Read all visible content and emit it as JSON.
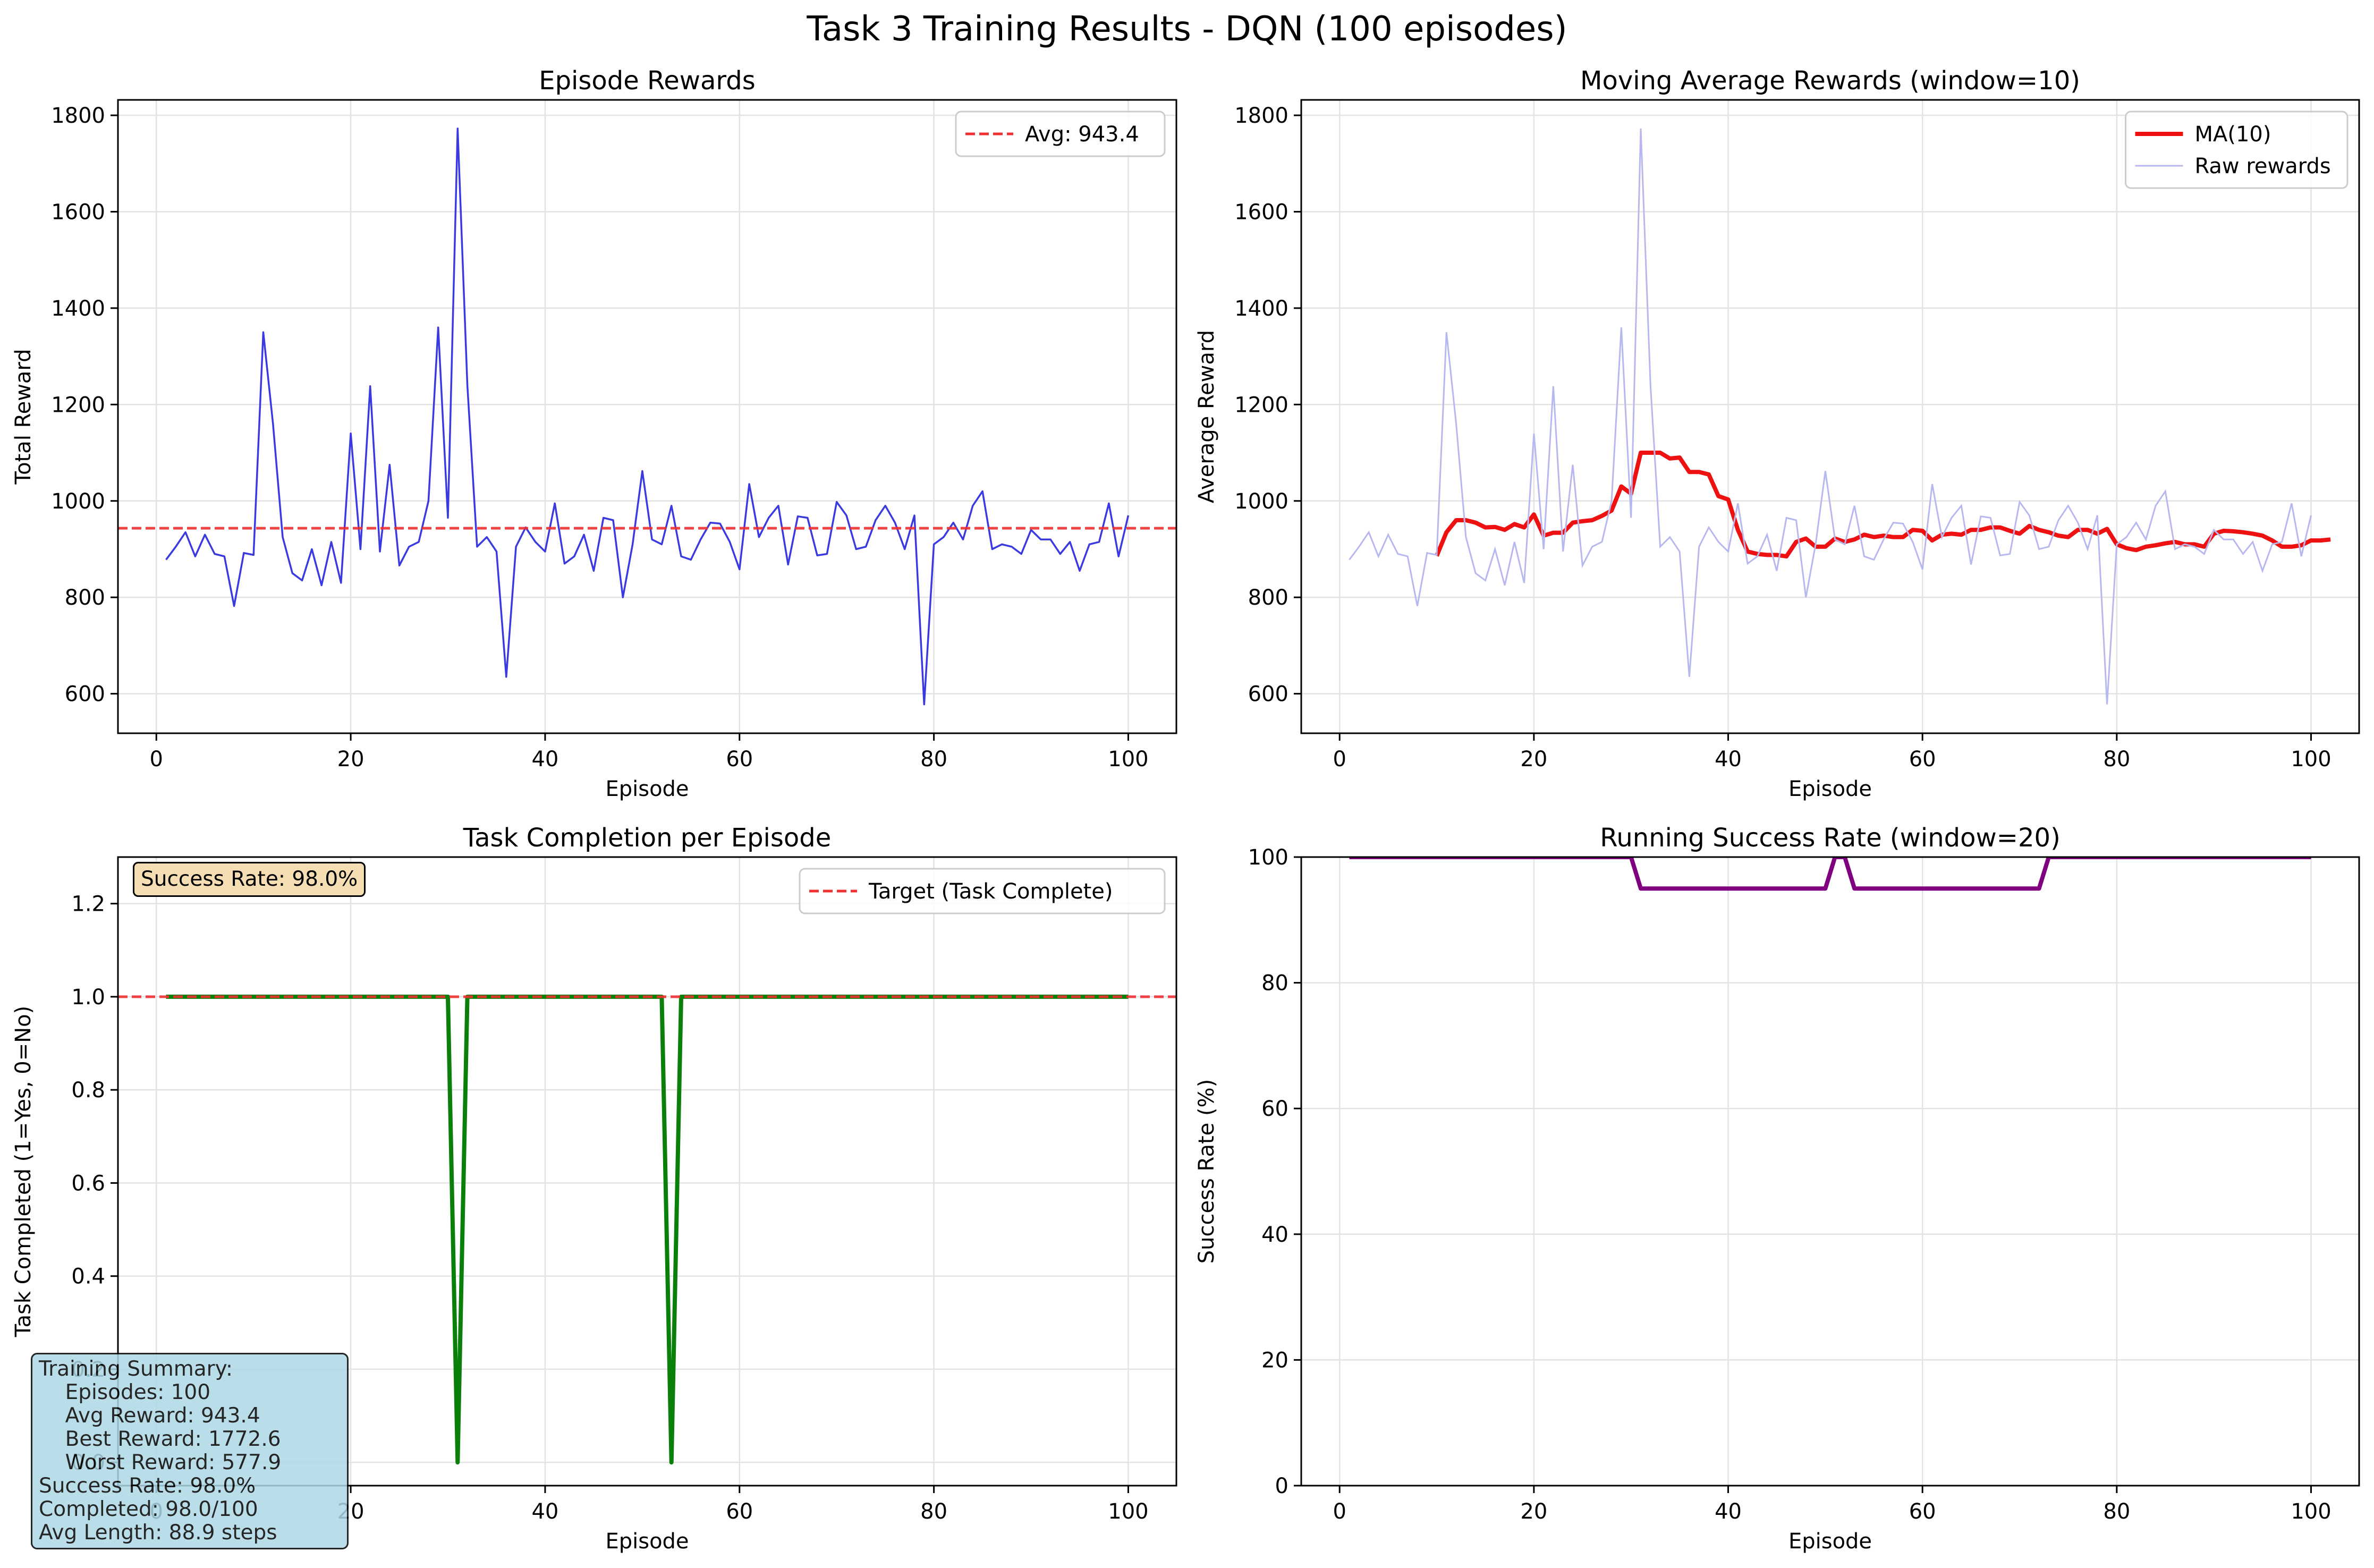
{
  "figure": {
    "title": "Task 3 Training Results - DQN (100 episodes)"
  },
  "colors": {
    "raw": "#3a3ae0",
    "avg": "#f03030",
    "ma": "#ee1111",
    "raw_faint": "#b8b8f0",
    "task": "#0a7f0a",
    "target": "#f03030",
    "success": "#800080",
    "grid": "#e3e3e3"
  },
  "chart_data": [
    {
      "id": "episode-rewards",
      "type": "line",
      "title": "Episode Rewards",
      "xlabel": "Episode",
      "ylabel": "Total Reward",
      "xlim": [
        -3.95,
        104.95
      ],
      "ylim": [
        518,
        1832
      ],
      "xticks": [
        0,
        20,
        40,
        60,
        80,
        100
      ],
      "yticks": [
        600,
        800,
        1000,
        1200,
        1400,
        1600,
        1800
      ],
      "grid": true,
      "legend_position": "upper-right",
      "series": [
        {
          "name": "",
          "x_start": 1,
          "values": [
            878,
            905,
            935,
            885,
            930,
            890,
            885,
            782,
            892,
            888,
            1350,
            1160,
            925,
            850,
            835,
            900,
            825,
            915,
            830,
            1140,
            900,
            1238,
            895,
            1075,
            866,
            905,
            915,
            1000,
            1360,
            965,
            1772.6,
            1240,
            905,
            925,
            895,
            635,
            905,
            945,
            915,
            895,
            995,
            870,
            885,
            930,
            855,
            965,
            960,
            800,
            910,
            1062,
            920,
            910,
            990,
            885,
            878,
            920,
            955,
            953,
            915,
            858,
            1035,
            925,
            965,
            990,
            868,
            968,
            965,
            887,
            890,
            998,
            970,
            900,
            905,
            960,
            990,
            955,
            900,
            970,
            577.9,
            910,
            925,
            955,
            920,
            990,
            1020,
            900,
            910,
            905,
            890,
            940,
            920,
            920,
            890,
            915,
            855,
            910,
            915,
            995,
            885,
            970
          ]
        },
        {
          "name": "Avg: 943.4",
          "kind": "hline",
          "value": 943.4
        }
      ]
    },
    {
      "id": "moving-average",
      "type": "line",
      "title": "Moving Average Rewards (window=10)",
      "xlabel": "Episode",
      "ylabel": "Average Reward",
      "xlim": [
        -3.95,
        104.95
      ],
      "ylim": [
        518,
        1832
      ],
      "xticks": [
        0,
        20,
        40,
        60,
        80,
        100
      ],
      "yticks": [
        600,
        800,
        1000,
        1200,
        1400,
        1600,
        1800
      ],
      "grid": true,
      "legend_position": "upper-right",
      "series": [
        {
          "name": "MA(10)",
          "x_start": 10,
          "values": [
            886,
            935,
            960,
            960,
            955,
            945,
            946,
            940,
            952,
            945,
            972,
            928,
            934,
            934,
            955,
            958,
            960,
            969,
            980,
            1030,
            1015,
            1100,
            1100,
            1100,
            1088,
            1090,
            1060,
            1060,
            1055,
            1010,
            1003,
            940,
            895,
            890,
            888,
            888,
            885,
            915,
            922,
            905,
            905,
            922,
            915,
            920,
            930,
            925,
            928,
            925,
            925,
            940,
            938,
            918,
            930,
            932,
            930,
            940,
            940,
            945,
            945,
            938,
            932,
            948,
            940,
            935,
            928,
            925,
            940,
            940,
            932,
            942,
            910,
            902,
            898,
            905,
            908,
            912,
            915,
            910,
            910,
            905,
            932,
            938,
            937,
            935,
            932,
            928,
            918,
            905,
            905,
            908,
            918,
            918,
            920
          ]
        },
        {
          "name": "Raw rewards",
          "kind": "raw",
          "ref": 0
        }
      ]
    },
    {
      "id": "task-completion",
      "type": "line",
      "title": "Task Completion per Episode",
      "xlabel": "Episode",
      "ylabel": "Task Completed (1=Yes, 0=No)",
      "xlim": [
        -3.95,
        104.95
      ],
      "ylim": [
        -0.05,
        1.3
      ],
      "xticks": [
        0,
        20,
        40,
        60,
        80,
        100
      ],
      "yticks": [
        0.0,
        0.2,
        0.4,
        0.6,
        0.8,
        1.0,
        1.2
      ],
      "grid": true,
      "legend_position": "upper-right",
      "series": [
        {
          "name": "",
          "x_start": 1,
          "values": [
            1,
            1,
            1,
            1,
            1,
            1,
            1,
            1,
            1,
            1,
            1,
            1,
            1,
            1,
            1,
            1,
            1,
            1,
            1,
            1,
            1,
            1,
            1,
            1,
            1,
            1,
            1,
            1,
            1,
            1,
            0,
            1,
            1,
            1,
            1,
            1,
            1,
            1,
            1,
            1,
            1,
            1,
            1,
            1,
            1,
            1,
            1,
            1,
            1,
            1,
            1,
            1,
            0,
            1,
            1,
            1,
            1,
            1,
            1,
            1,
            1,
            1,
            1,
            1,
            1,
            1,
            1,
            1,
            1,
            1,
            1,
            1,
            1,
            1,
            1,
            1,
            1,
            1,
            1,
            1,
            1,
            1,
            1,
            1,
            1,
            1,
            1,
            1,
            1,
            1,
            1,
            1,
            1,
            1,
            1,
            1,
            1,
            1,
            1,
            1
          ]
        },
        {
          "name": "Target (Task Complete)",
          "kind": "hline",
          "value": 1.0
        }
      ],
      "annotation": "Success Rate: 98.0%"
    },
    {
      "id": "running-success",
      "type": "line",
      "title": "Running Success Rate (window=20)",
      "xlabel": "Episode",
      "ylabel": "Success Rate (%)",
      "xlim": [
        -3.95,
        104.95
      ],
      "ylim": [
        0,
        100
      ],
      "xticks": [
        0,
        20,
        40,
        60,
        80,
        100
      ],
      "yticks": [
        0,
        20,
        40,
        60,
        80,
        100
      ],
      "grid": true,
      "series": [
        {
          "name": "",
          "points": [
            [
              1,
              100
            ],
            [
              30,
              100
            ],
            [
              31,
              95
            ],
            [
              50,
              95
            ],
            [
              51,
              100
            ],
            [
              52,
              100
            ],
            [
              53,
              95
            ],
            [
              72,
              95
            ],
            [
              73,
              100
            ],
            [
              100,
              100
            ]
          ]
        }
      ]
    }
  ],
  "summary": {
    "lines": [
      "Training Summary:",
      "    Episodes: 100",
      "    Avg Reward: 943.4",
      "    Best Reward: 1772.6",
      "    Worst Reward: 577.9",
      "Success Rate: 98.0%",
      "Completed: 98.0/100",
      "Avg Length: 88.9 steps"
    ]
  }
}
